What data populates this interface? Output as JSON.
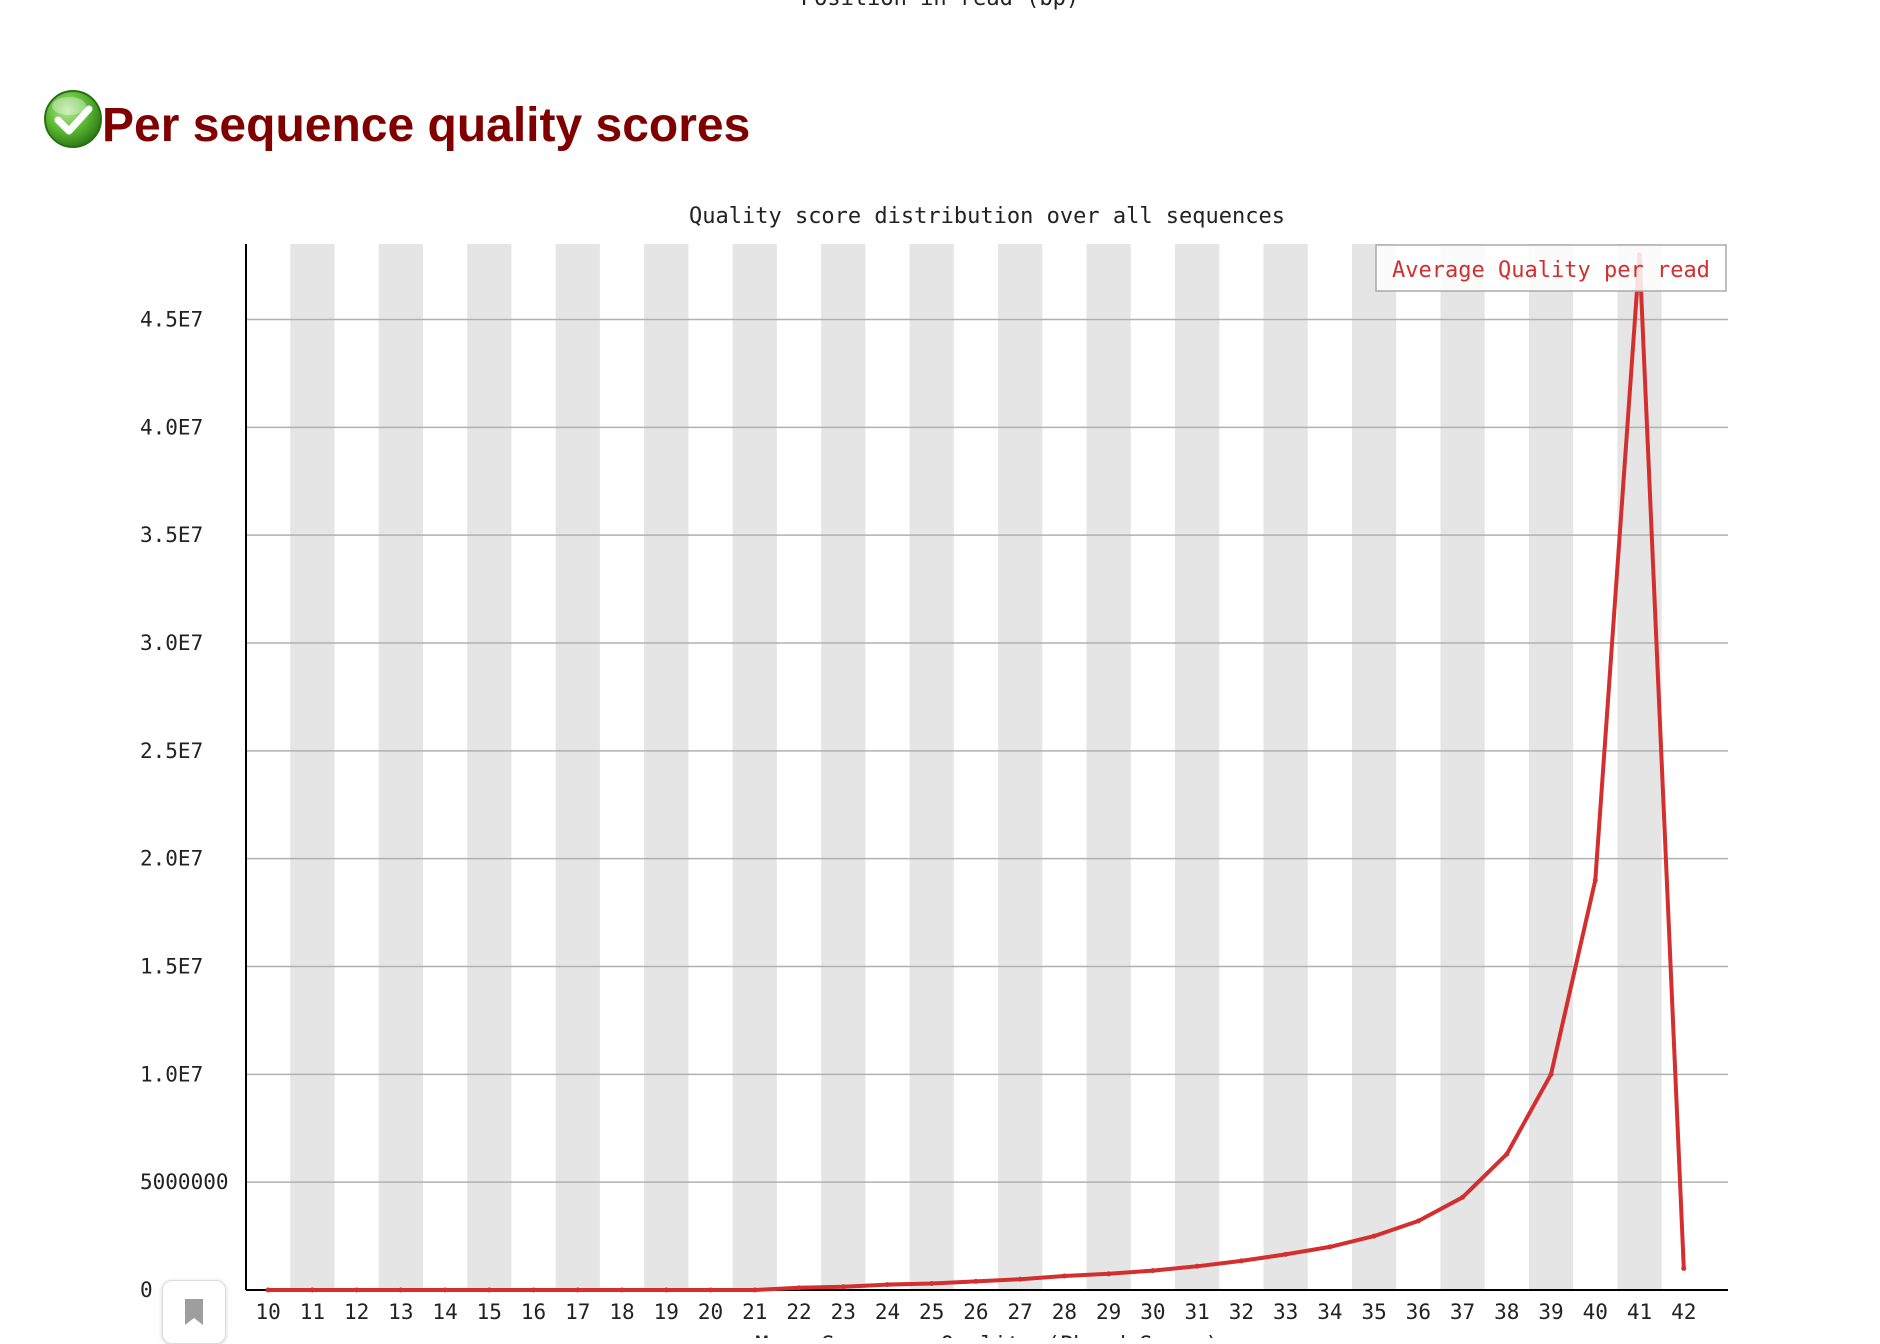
{
  "page": {
    "previous_axis_label": "Position in read (bp)"
  },
  "section": {
    "title": "Per sequence quality scores",
    "status_icon": "check-circle-icon",
    "status_color": "#4caf2e"
  },
  "bookmark": {
    "icon": "bookmark-icon"
  },
  "chart_data": {
    "type": "line",
    "title": "Quality score distribution over all sequences",
    "xlabel": "Mean Sequence Quality (Phred Score)",
    "ylabel": "",
    "x": [
      10,
      11,
      12,
      13,
      14,
      15,
      16,
      17,
      18,
      19,
      20,
      21,
      22,
      23,
      24,
      25,
      26,
      27,
      28,
      29,
      30,
      31,
      32,
      33,
      34,
      35,
      36,
      37,
      38,
      39,
      40,
      41,
      42
    ],
    "ylim": [
      0,
      48500000
    ],
    "yticks": [
      {
        "value": 0,
        "label": "0"
      },
      {
        "value": 5000000,
        "label": "5000000"
      },
      {
        "value": 10000000,
        "label": "1.0E7"
      },
      {
        "value": 15000000,
        "label": "1.5E7"
      },
      {
        "value": 20000000,
        "label": "2.0E7"
      },
      {
        "value": 25000000,
        "label": "2.5E7"
      },
      {
        "value": 30000000,
        "label": "3.0E7"
      },
      {
        "value": 35000000,
        "label": "3.5E7"
      },
      {
        "value": 40000000,
        "label": "4.0E7"
      },
      {
        "value": 45000000,
        "label": "4.5E7"
      }
    ],
    "series": [
      {
        "name": "Average Quality per read",
        "color": "#d32f2f",
        "values": [
          0,
          0,
          0,
          0,
          0,
          0,
          0,
          0,
          0,
          0,
          0,
          0,
          100000,
          150000,
          250000,
          300000,
          400000,
          500000,
          650000,
          750000,
          900000,
          1100000,
          1350000,
          1650000,
          2000000,
          2500000,
          3200000,
          4300000,
          6300000,
          10000000,
          19000000,
          48000000,
          1000000
        ]
      }
    ],
    "grid": true,
    "legend_position": "top-right",
    "band_colors": [
      "#e5e5e5",
      "#ffffff"
    ],
    "axis_color": "#000000",
    "grid_color": "#b0b0b0"
  }
}
